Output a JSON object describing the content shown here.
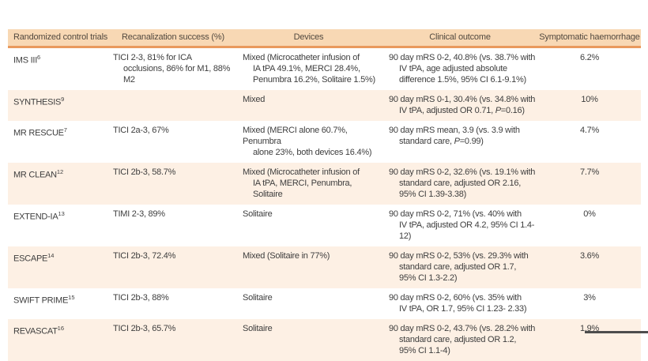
{
  "table": {
    "columns": [
      {
        "label": "Randomized control trials"
      },
      {
        "label": "Recanalization success (%)"
      },
      {
        "label": "Devices"
      },
      {
        "label": "Clinical outcome"
      },
      {
        "label": "Symptomatic haemorrhage"
      }
    ],
    "rows": [
      {
        "trial": "IMS III",
        "ref": "6",
        "recanalization": [
          "TICI 2-3, 81% for ICA",
          "occlusions, 86% for M1, 88% M2"
        ],
        "devices": [
          "Mixed (Microcatheter infusion of",
          "IA tPA 49.1%, MERCI 28.4%,",
          "Penumbra 16.2%, Solitaire 1.5%)"
        ],
        "outcome": [
          "90 day mRS 0-2, 40.8% (vs. 38.7% with",
          "IV tPA, age adjusted absolute",
          "difference 1.5%, 95% CI 6.1-9.1%)"
        ],
        "haemorrhage": "6.2%"
      },
      {
        "trial": "SYNTHESIS",
        "ref": "9",
        "recanalization": [],
        "devices": [
          "Mixed"
        ],
        "outcome": [
          "90 day mRS 0-1, 30.4% (vs. 34.8% with",
          "IV tPA, adjusted OR 0.71, P=0.16)"
        ],
        "haemorrhage": "10%"
      },
      {
        "trial": "MR RESCUE",
        "ref": "7",
        "recanalization": [
          "TICI 2a-3, 67%"
        ],
        "devices": [
          "Mixed (MERCI alone 60.7%, Penumbra",
          "alone 23%, both devices 16.4%)"
        ],
        "outcome": [
          "90 day mRS mean, 3.9 (vs. 3.9 with",
          "standard care, P=0.99)"
        ],
        "haemorrhage": "4.7%"
      },
      {
        "trial": "MR CLEAN",
        "ref": "12",
        "recanalization": [
          "TICI 2b-3, 58.7%"
        ],
        "devices": [
          "Mixed (Microcatheter infusion of",
          "IA tPA, MERCI, Penumbra, Solitaire"
        ],
        "outcome": [
          "90 day mRS 0-2, 32.6% (vs. 19.1% with",
          "standard care, adjusted OR 2.16,",
          "95% CI 1.39-3.38)"
        ],
        "haemorrhage": "7.7%"
      },
      {
        "trial": "EXTEND-IA",
        "ref": "13",
        "recanalization": [
          "TIMI 2-3, 89%"
        ],
        "devices": [
          "Solitaire"
        ],
        "outcome": [
          "90 day mRS 0-2, 71% (vs. 40% with",
          "IV tPA, adjusted OR 4.2, 95% CI 1.4-12)"
        ],
        "haemorrhage": "0%"
      },
      {
        "trial": "ESCAPE",
        "ref": "14",
        "recanalization": [
          "TICI 2b-3, 72.4%"
        ],
        "devices": [
          "Mixed (Solitaire in 77%)"
        ],
        "outcome": [
          "90 day mRS 0-2, 53% (vs. 29.3% with",
          "standard care, adjusted OR 1.7,",
          "95% CI 1.3-2.2)"
        ],
        "haemorrhage": "3.6%"
      },
      {
        "trial": "SWIFT PRIME",
        "ref": "15",
        "recanalization": [
          "TICI 2b-3, 88%"
        ],
        "devices": [
          "Solitaire"
        ],
        "outcome": [
          "90 day mRS 0-2, 60% (vs. 35% with",
          "IV tPA, OR 1.7, 95% CI 1.23- 2.33)"
        ],
        "haemorrhage": "3%"
      },
      {
        "trial": "REVASCAT",
        "ref": "16",
        "recanalization": [
          "TICI 2b-3, 65.7%"
        ],
        "devices": [
          "Solitaire"
        ],
        "outcome": [
          "90 day mRS 0-2, 43.7% (vs. 28.2% with",
          "standard care, adjusted OR 1.2,",
          "95% CI 1.1-4)"
        ],
        "haemorrhage": "1.9%"
      }
    ],
    "colors": {
      "header_bg": "#f8d8b4",
      "header_rule": "#e9995d",
      "stripe_bg": "#fdf0e4",
      "text": "#3e3e3e",
      "header_text": "#52493f"
    }
  }
}
